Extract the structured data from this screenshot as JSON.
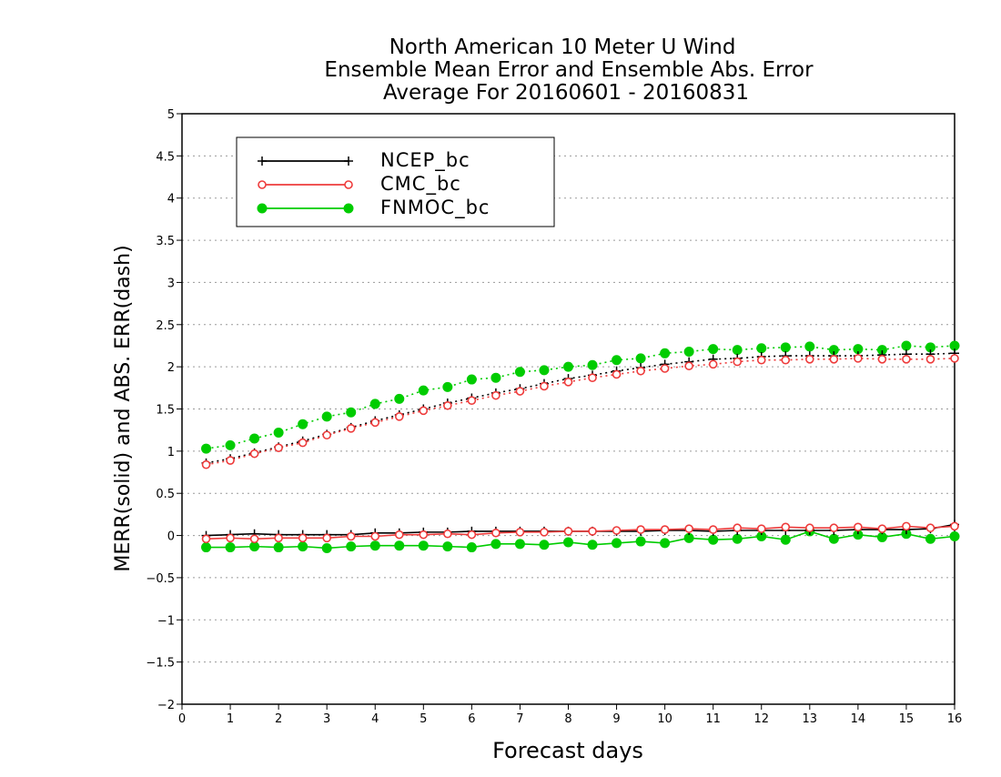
{
  "chart_data": {
    "type": "line",
    "title": [
      "North American 10 Meter U Wind",
      "Ensemble Mean Error and Ensemble Abs. Error",
      "Average For 20160601 - 20160831"
    ],
    "xlabel": "Forecast days",
    "ylabel": "MERR(solid) and ABS. ERR(dash)",
    "xlim": [
      0,
      16
    ],
    "ylim": [
      -2,
      5
    ],
    "xticks": [
      0,
      1,
      2,
      3,
      4,
      5,
      6,
      7,
      8,
      9,
      10,
      11,
      12,
      13,
      14,
      15,
      16
    ],
    "xtick_labels": [
      "0",
      "1",
      "2",
      "3",
      "4",
      "5",
      "6",
      "7",
      "8",
      "9",
      "10",
      "11",
      "12",
      "13",
      "14",
      "15",
      "16"
    ],
    "yticks": [
      -2,
      -1.5,
      -1,
      -0.5,
      0,
      0.5,
      1,
      1.5,
      2,
      2.5,
      3,
      3.5,
      4,
      4.5,
      5
    ],
    "ytick_labels": [
      "−2",
      "−1.5",
      "−1",
      "−0.5",
      "0",
      "0.5",
      "1",
      "1.5",
      "2",
      "2.5",
      "3",
      "3.5",
      "4",
      "4.5",
      "5"
    ],
    "grid": "horizontal dotted",
    "legend_position": "top-left",
    "x": [
      0.5,
      1,
      1.5,
      2,
      2.5,
      3,
      3.5,
      4,
      4.5,
      5,
      5.5,
      6,
      6.5,
      7,
      7.5,
      8,
      8.5,
      9,
      9.5,
      10,
      10.5,
      11,
      11.5,
      12,
      12.5,
      13,
      13.5,
      14,
      14.5,
      15,
      15.5,
      16
    ],
    "series": [
      {
        "name": "NCEP_bc",
        "color": "#000000",
        "marker": "plus",
        "merr": [
          0.0,
          0.01,
          0.02,
          0.01,
          0.01,
          0.01,
          0.01,
          0.03,
          0.03,
          0.04,
          0.04,
          0.05,
          0.05,
          0.05,
          0.05,
          0.05,
          0.05,
          0.05,
          0.05,
          0.06,
          0.06,
          0.05,
          0.06,
          0.06,
          0.06,
          0.06,
          0.06,
          0.07,
          0.07,
          0.07,
          0.08,
          0.13
        ],
        "abs_err": [
          0.86,
          0.91,
          0.98,
          1.05,
          1.12,
          1.2,
          1.28,
          1.36,
          1.43,
          1.5,
          1.57,
          1.63,
          1.69,
          1.74,
          1.8,
          1.86,
          1.9,
          1.95,
          1.99,
          2.03,
          2.06,
          2.09,
          2.1,
          2.12,
          2.13,
          2.13,
          2.13,
          2.13,
          2.14,
          2.15,
          2.15,
          2.16
        ]
      },
      {
        "name": "CMC_bc",
        "color": "#ee3b3b",
        "marker": "open-circle",
        "merr": [
          -0.04,
          -0.03,
          -0.04,
          -0.03,
          -0.03,
          -0.03,
          -0.01,
          -0.01,
          0.01,
          0.01,
          0.02,
          0.01,
          0.03,
          0.04,
          0.04,
          0.05,
          0.05,
          0.06,
          0.07,
          0.07,
          0.08,
          0.07,
          0.09,
          0.08,
          0.1,
          0.09,
          0.09,
          0.1,
          0.08,
          0.11,
          0.09,
          0.11
        ],
        "abs_err": [
          0.84,
          0.89,
          0.97,
          1.04,
          1.1,
          1.19,
          1.27,
          1.34,
          1.41,
          1.48,
          1.54,
          1.6,
          1.66,
          1.71,
          1.77,
          1.82,
          1.87,
          1.91,
          1.95,
          1.98,
          2.01,
          2.03,
          2.06,
          2.08,
          2.08,
          2.09,
          2.09,
          2.1,
          2.09,
          2.09,
          2.09,
          2.1
        ]
      },
      {
        "name": "FNMOC_bc",
        "color": "#00cc00",
        "marker": "filled-circle",
        "merr": [
          -0.14,
          -0.14,
          -0.13,
          -0.14,
          -0.13,
          -0.15,
          -0.13,
          -0.12,
          -0.12,
          -0.12,
          -0.13,
          -0.14,
          -0.1,
          -0.1,
          -0.11,
          -0.08,
          -0.11,
          -0.09,
          -0.07,
          -0.09,
          -0.03,
          -0.05,
          -0.04,
          -0.01,
          -0.05,
          0.05,
          -0.04,
          0.01,
          -0.02,
          0.02,
          -0.04,
          -0.01
        ],
        "abs_err": [
          1.03,
          1.07,
          1.15,
          1.22,
          1.32,
          1.41,
          1.46,
          1.56,
          1.62,
          1.72,
          1.76,
          1.85,
          1.87,
          1.94,
          1.96,
          2.0,
          2.02,
          2.08,
          2.1,
          2.16,
          2.18,
          2.21,
          2.2,
          2.22,
          2.23,
          2.24,
          2.2,
          2.21,
          2.2,
          2.25,
          2.23,
          2.25
        ]
      }
    ]
  }
}
